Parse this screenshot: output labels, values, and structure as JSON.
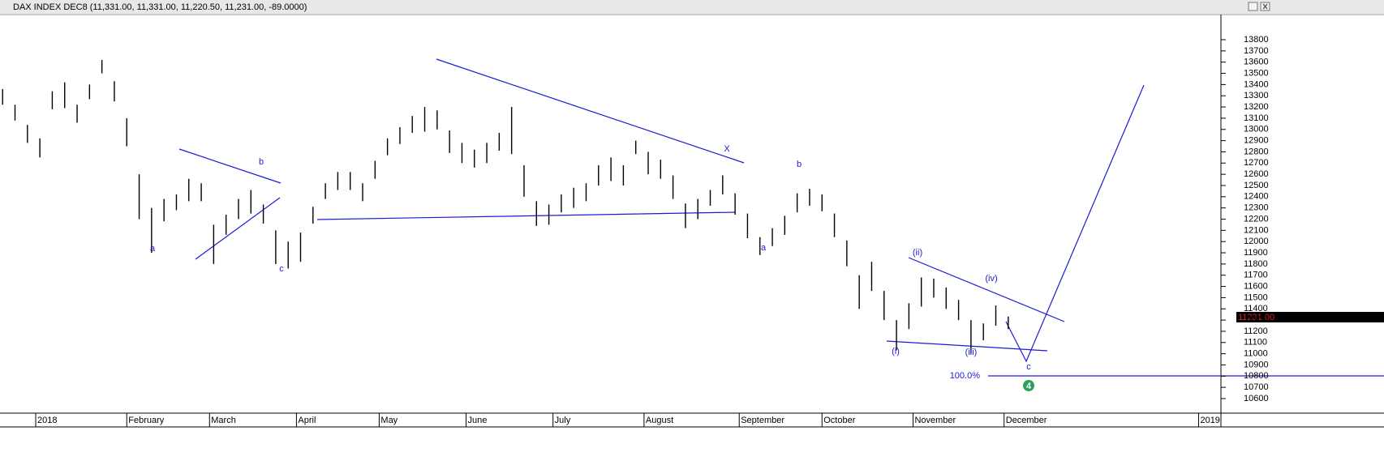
{
  "chart_data": {
    "type": "ohlc-bars",
    "title": "DAX INDEX DEC8 (11,331.00, 11,331.00, 11,220.50, 11,231.00, -89.0000)",
    "last_price": "11231.00",
    "ylim": [
      10470,
      14024
    ],
    "yticks": [
      10600,
      10700,
      10800,
      10900,
      11000,
      11100,
      11200,
      11300,
      11400,
      11500,
      11600,
      11700,
      11800,
      11900,
      12000,
      12100,
      12200,
      12300,
      12400,
      12500,
      12600,
      12700,
      12800,
      12900,
      13000,
      13100,
      13200,
      13300,
      13400,
      13500,
      13600,
      13700,
      13800
    ],
    "xlim": [
      -8.63,
      286.4
    ],
    "xticks": [
      {
        "value": 0,
        "label": "2018"
      },
      {
        "value": 22,
        "label": "February"
      },
      {
        "value": 42,
        "label": "March"
      },
      {
        "value": 63,
        "label": "April"
      },
      {
        "value": 83,
        "label": "May"
      },
      {
        "value": 104,
        "label": "June"
      },
      {
        "value": 125,
        "label": "July"
      },
      {
        "value": 147,
        "label": "August"
      },
      {
        "value": 170,
        "label": "September"
      },
      {
        "value": 190,
        "label": "October"
      },
      {
        "value": 212,
        "label": "November"
      },
      {
        "value": 234,
        "label": "December"
      },
      {
        "value": 281,
        "label": "2019"
      }
    ],
    "x": [
      -8,
      -5,
      -2,
      1,
      4,
      7,
      10,
      13,
      16,
      19,
      22,
      25,
      28,
      31,
      34,
      37,
      40,
      43,
      46,
      49,
      52,
      55,
      58,
      61,
      64,
      67,
      70,
      73,
      76,
      79,
      82,
      85,
      88,
      91,
      94,
      97,
      100,
      103,
      106,
      109,
      112,
      115,
      118,
      121,
      124,
      127,
      130,
      133,
      136,
      139,
      142,
      145,
      148,
      151,
      154,
      157,
      160,
      163,
      166,
      169,
      172,
      175,
      178,
      181,
      184,
      187,
      190,
      193,
      196,
      199,
      202,
      205,
      208,
      211,
      214,
      217,
      220,
      223,
      226,
      229,
      232,
      235
    ],
    "series": [
      {
        "name": "DAX INDEX DEC8",
        "color": "#000000",
        "high": [
          13360,
          13220,
          13040,
          12920,
          13340,
          13420,
          13220,
          13400,
          13620,
          13430,
          13100,
          12600,
          12300,
          12380,
          12420,
          12560,
          12520,
          12150,
          12240,
          12380,
          12460,
          12330,
          12100,
          12000,
          12080,
          12310,
          12520,
          12620,
          12620,
          12520,
          12720,
          12920,
          13020,
          13120,
          13200,
          13170,
          12990,
          12880,
          12820,
          12880,
          12970,
          13200,
          12680,
          12360,
          12330,
          12420,
          12480,
          12520,
          12680,
          12750,
          12680,
          12900,
          12800,
          12730,
          12590,
          12340,
          12380,
          12460,
          12590,
          12430,
          12250,
          12040,
          12120,
          12230,
          12430,
          12470,
          12420,
          12250,
          12010,
          11700,
          11820,
          11560,
          11300,
          11450,
          11680,
          11670,
          11590,
          11480,
          11300,
          11270,
          11430,
          11331
        ],
        "low": [
          13220,
          13080,
          12880,
          12750,
          13180,
          13190,
          13060,
          13270,
          13500,
          13250,
          12850,
          12200,
          11900,
          12180,
          12280,
          12360,
          12360,
          11800,
          12060,
          12200,
          12250,
          12160,
          11800,
          11760,
          11820,
          12160,
          12380,
          12460,
          12460,
          12360,
          12560,
          12770,
          12870,
          12970,
          12980,
          13000,
          12790,
          12700,
          12660,
          12700,
          12810,
          12780,
          12400,
          12140,
          12150,
          12260,
          12300,
          12360,
          12500,
          12540,
          12500,
          12780,
          12600,
          12560,
          12380,
          12120,
          12200,
          12320,
          12420,
          12240,
          12030,
          11880,
          11960,
          12060,
          12260,
          12320,
          12270,
          12040,
          11780,
          11400,
          11560,
          11300,
          11030,
          11220,
          11420,
          11500,
          11400,
          11300,
          11000,
          11120,
          11250,
          11220.5
        ]
      }
    ],
    "wave_labels": [
      "a",
      "b",
      "c",
      "X",
      "b",
      "a",
      "(ii)",
      "(iv)",
      "(i)",
      "(iii)",
      "c"
    ],
    "fib_label": "100.0%",
    "marker": "4"
  }
}
